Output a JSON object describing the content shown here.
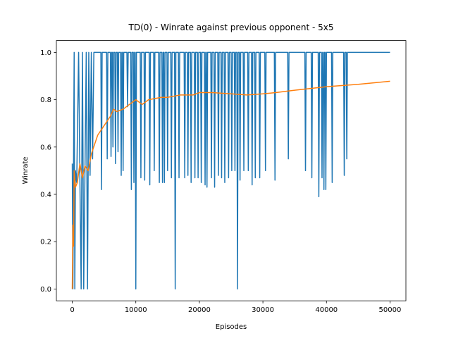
{
  "chart_data": {
    "type": "line",
    "title": "TD(0) - Winrate against previous opponent - 5x5",
    "x_label": "Episodes",
    "y_label": "Winrate",
    "xlim": [
      -2500,
      52500
    ],
    "ylim": [
      -0.05,
      1.05
    ],
    "xticks": [
      0,
      10000,
      20000,
      30000,
      40000,
      50000
    ],
    "yticks": [
      {
        "value": 0,
        "label": "0.0"
      },
      {
        "value": 0.2,
        "label": "0.2"
      },
      {
        "value": 0.4,
        "label": "0.4"
      },
      {
        "value": 0.6,
        "label": "0.6"
      },
      {
        "value": 0.8,
        "label": "0.8"
      },
      {
        "value": 1,
        "label": "1.0"
      }
    ],
    "series": [
      {
        "color": "#1f77b4",
        "x": [
          0,
          100,
          200,
          300,
          400,
          500,
          700,
          1000,
          1200,
          1400,
          1600,
          1800,
          2000,
          2200,
          2400,
          2600,
          2800,
          3000,
          3200,
          3400,
          4500,
          4600,
          4700,
          5400,
          5500,
          5600,
          6000,
          6100,
          6200,
          6300,
          6400,
          6500,
          6700,
          6800,
          6900,
          7100,
          7200,
          7300,
          7600,
          7700,
          7800,
          7900,
          8000,
          8100,
          8600,
          8700,
          8800,
          9200,
          9300,
          9400,
          9600,
          9700,
          9800,
          9900,
          10000,
          10100,
          10700,
          10800,
          10900,
          11300,
          11400,
          11500,
          12100,
          12200,
          12300,
          12800,
          12900,
          13000,
          13600,
          13700,
          13800,
          14100,
          14200,
          14300,
          14400,
          14500,
          14600,
          14900,
          15000,
          15100,
          15500,
          15600,
          15700,
          16100,
          16200,
          16300,
          16700,
          16800,
          16900,
          17600,
          17700,
          17800,
          18100,
          18200,
          18300,
          18600,
          18700,
          18800,
          19200,
          19300,
          19400,
          19700,
          19800,
          19900,
          20200,
          20300,
          20400,
          20800,
          20900,
          21000,
          21100,
          21200,
          21300,
          21800,
          21900,
          22000,
          22300,
          22400,
          22500,
          22900,
          23000,
          23100,
          23400,
          23500,
          23600,
          23900,
          24000,
          24100,
          24500,
          24600,
          24700,
          25000,
          25100,
          25200,
          25500,
          25600,
          25700,
          25900,
          26000,
          26100,
          26300,
          26400,
          26500,
          26900,
          27000,
          27100,
          27600,
          27700,
          27800,
          28200,
          28300,
          28400,
          28700,
          28800,
          28900,
          29400,
          29500,
          29600,
          30300,
          30400,
          30500,
          31800,
          31900,
          32000,
          33900,
          34000,
          34100,
          36600,
          36700,
          36800,
          37600,
          37700,
          37800,
          38700,
          38800,
          38900,
          39200,
          39300,
          39400,
          39500,
          39600,
          39700,
          39800,
          39900,
          40000,
          40800,
          40900,
          41000,
          42700,
          42800,
          42900,
          43100,
          43200,
          43300,
          50000
        ],
        "values": [
          0.53,
          0,
          0.52,
          1,
          0,
          0.5,
          0.45,
          1,
          0.47,
          0,
          1,
          0,
          0.5,
          1,
          0,
          1,
          0.48,
          1,
          0.55,
          1,
          1,
          0.42,
          1,
          1,
          0.55,
          1,
          1,
          0.56,
          1,
          1,
          0.6,
          1,
          1,
          0.53,
          1,
          1,
          0.58,
          1,
          1,
          0.48,
          1,
          1,
          0.5,
          1,
          1,
          0.77,
          1,
          1,
          0.42,
          1,
          1,
          0.45,
          1,
          1,
          0,
          1,
          1,
          0.47,
          1,
          1,
          0.46,
          1,
          1,
          0.44,
          1,
          1,
          0.5,
          1,
          1,
          0.45,
          1,
          1,
          0.45,
          1,
          1,
          0.45,
          1,
          1,
          0.5,
          1,
          1,
          0.47,
          1,
          1,
          0,
          1,
          1,
          0.47,
          1,
          1,
          0.47,
          1,
          1,
          0.48,
          1,
          1,
          0.45,
          1,
          1,
          0.47,
          1,
          1,
          0.47,
          1,
          1,
          0.45,
          1,
          1,
          0.44,
          1,
          1,
          0.43,
          1,
          1,
          0.47,
          1,
          1,
          0.43,
          1,
          1,
          0.48,
          1,
          1,
          0.47,
          1,
          1,
          0.45,
          1,
          1,
          0.47,
          1,
          1,
          0.5,
          1,
          1,
          0.5,
          1,
          1,
          0,
          1,
          1,
          0.46,
          1,
          1,
          0.5,
          1,
          1,
          0.5,
          1,
          1,
          0.44,
          1,
          1,
          0.47,
          1,
          1,
          0.47,
          1,
          1,
          0.5,
          1,
          1,
          0.46,
          1,
          1,
          0.55,
          1,
          1,
          0.5,
          1,
          1,
          0.47,
          1,
          1,
          0.39,
          1,
          1,
          0.47,
          1,
          1,
          0.42,
          1,
          1,
          0.42,
          1,
          1,
          0.45,
          1,
          1,
          0.48,
          1,
          1,
          0.55,
          1,
          1
        ]
      },
      {
        "color": "#ff7f0e",
        "x": [
          0,
          100,
          200,
          300,
          500,
          800,
          1200,
          1600,
          2000,
          2500,
          3000,
          4000,
          5000,
          6000,
          6500,
          7000,
          8000,
          9000,
          10000,
          11000,
          12000,
          14000,
          15000,
          17000,
          19000,
          20000,
          22000,
          25000,
          27500,
          30000,
          32000,
          35000,
          40000,
          45000,
          50000
        ],
        "values": [
          0,
          0.27,
          0.18,
          0.5,
          0.43,
          0.45,
          0.53,
          0.47,
          0.52,
          0.5,
          0.57,
          0.65,
          0.69,
          0.73,
          0.76,
          0.75,
          0.76,
          0.78,
          0.8,
          0.78,
          0.8,
          0.81,
          0.81,
          0.82,
          0.82,
          0.83,
          0.83,
          0.825,
          0.82,
          0.825,
          0.83,
          0.84,
          0.855,
          0.865,
          0.878
        ]
      }
    ]
  }
}
